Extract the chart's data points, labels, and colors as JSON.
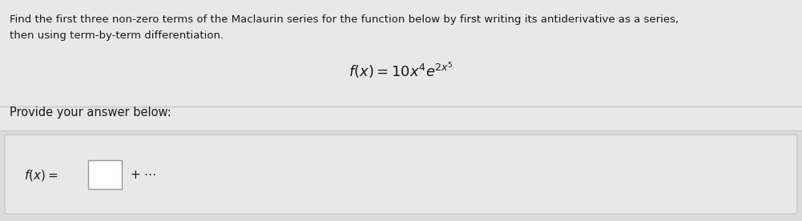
{
  "bg_color": "#e8e8e8",
  "section_bg": "#e8e8e8",
  "answer_bg": "#e0e0e0",
  "white_color": "#ffffff",
  "text_color": "#1a1a1a",
  "line_color": "#c8c8c8",
  "instruction_line1": "Find the first three non-zero terms of the Maclaurin series for the function below by first writing its antiderivative as a series,",
  "instruction_line2": "then using term-by-term differentiation.",
  "provide_label": "Provide your answer below:",
  "figwidth": 10.01,
  "figheight": 2.76,
  "dpi": 100
}
